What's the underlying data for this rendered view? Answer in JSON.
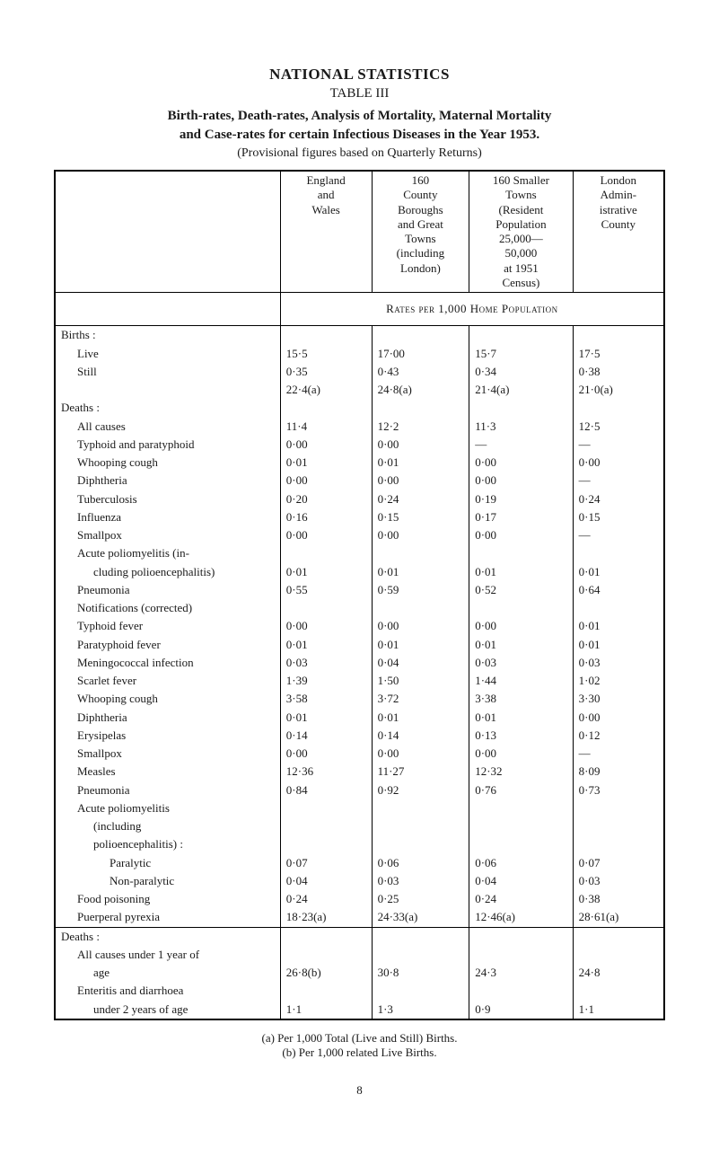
{
  "title": "NATIONAL STATISTICS",
  "table_no": "TABLE III",
  "heading_line1_prefix": "Birth-rates, Death-rates, Analysis of Mortality, Maternal Mortality",
  "heading_line2_prefix": "and Case-rates for certain Infectious Diseases in the Year 1953.",
  "paren": "(Provisional figures based on Quarterly Returns)",
  "columns": {
    "c1": "England\nand\nWales",
    "c2": "160\nCounty\nBoroughs\nand Great\nTowns\n(including\nLondon)",
    "c3": "160 Smaller\nTowns\n(Resident\nPopulation\n25,000—\n50,000\nat 1951\nCensus)",
    "c4": "London\nAdmin-\nistrative\nCounty"
  },
  "rates_label": "Rates per 1,000 Home Population",
  "section_births": "Births :",
  "section_deaths": "Deaths :",
  "section_notifs": "Notifications (corrected)",
  "section_acute_polio": "Acute poliomyelitis",
  "section_acute_polio_sub1": "(including",
  "section_acute_polio_sub2": "polioencephalitis) :",
  "section_deaths2": "Deaths :",
  "rows": {
    "live": {
      "label": "Live",
      "v": [
        "15·5",
        "17·00",
        "15·7",
        "17·5"
      ]
    },
    "still": {
      "label": "Still",
      "v": [
        "0·35",
        "0·43",
        "0·34",
        "0·38"
      ]
    },
    "still2": {
      "label": "",
      "v": [
        "22·4(a)",
        "24·8(a)",
        "21·4(a)",
        "21·0(a)"
      ]
    },
    "allcauses": {
      "label": "All causes",
      "v": [
        "11·4",
        "12·2",
        "11·3",
        "12·5"
      ]
    },
    "typhpara": {
      "label": "Typhoid and paratyphoid",
      "v": [
        "0·00",
        "0·00",
        "—",
        "—"
      ]
    },
    "whoop": {
      "label": "Whooping cough",
      "v": [
        "0·01",
        "0·01",
        "0·00",
        "0·00"
      ]
    },
    "diph": {
      "label": "Diphtheria",
      "v": [
        "0·00",
        "0·00",
        "0·00",
        "—"
      ]
    },
    "tb": {
      "label": "Tuberculosis",
      "v": [
        "0·20",
        "0·24",
        "0·19",
        "0·24"
      ]
    },
    "flu": {
      "label": "Influenza",
      "v": [
        "0·16",
        "0·15",
        "0·17",
        "0·15"
      ]
    },
    "smallpox": {
      "label": "Smallpox",
      "v": [
        "0·00",
        "0·00",
        "0·00",
        "—"
      ]
    },
    "acutepolio_d_lbl1": "Acute poliomyelitis (in-",
    "acutepolio_d_lbl2": "cluding polioencephalitis)",
    "acutepolio_d": {
      "v": [
        "0·01",
        "0·01",
        "0·01",
        "0·01"
      ]
    },
    "pneu_d": {
      "label": "Pneumonia",
      "v": [
        "0·55",
        "0·59",
        "0·52",
        "0·64"
      ]
    },
    "typhfever": {
      "label": "Typhoid fever",
      "v": [
        "0·00",
        "0·00",
        "0·00",
        "0·01"
      ]
    },
    "paraty": {
      "label": "Paratyphoid fever",
      "v": [
        "0·01",
        "0·01",
        "0·01",
        "0·01"
      ]
    },
    "mening": {
      "label": "Meningococcal infection",
      "v": [
        "0·03",
        "0·04",
        "0·03",
        "0·03"
      ]
    },
    "scarlet": {
      "label": "Scarlet fever",
      "v": [
        "1·39",
        "1·50",
        "1·44",
        "1·02"
      ]
    },
    "whoop_n": {
      "label": "Whooping cough",
      "v": [
        "3·58",
        "3·72",
        "3·38",
        "3·30"
      ]
    },
    "diph_n": {
      "label": "Diphtheria",
      "v": [
        "0·01",
        "0·01",
        "0·01",
        "0·00"
      ]
    },
    "erys": {
      "label": "Erysipelas",
      "v": [
        "0·14",
        "0·14",
        "0·13",
        "0·12"
      ]
    },
    "smallpox_n": {
      "label": "Smallpox",
      "v": [
        "0·00",
        "0·00",
        "0·00",
        "—"
      ]
    },
    "measles": {
      "label": "Measles",
      "v": [
        "12·36",
        "11·27",
        "12·32",
        "8·09"
      ]
    },
    "pneu_n": {
      "label": "Pneumonia",
      "v": [
        "0·84",
        "0·92",
        "0·76",
        "0·73"
      ]
    },
    "paralytic": {
      "label": "Paralytic",
      "v": [
        "0·07",
        "0·06",
        "0·06",
        "0·07"
      ]
    },
    "nonpara": {
      "label": "Non-paralytic",
      "v": [
        "0·04",
        "0·03",
        "0·04",
        "0·03"
      ]
    },
    "foodpois": {
      "label": "Food poisoning",
      "v": [
        "0·24",
        "0·25",
        "0·24",
        "0·38"
      ]
    },
    "puerp": {
      "label": "Puerperal pyrexia",
      "v": [
        "18·23(a)",
        "24·33(a)",
        "12·46(a)",
        "28·61(a)"
      ]
    },
    "allcauses1y_lbl1": "All causes under 1 year of",
    "allcauses1y_lbl2": "age",
    "allcauses1y": {
      "v": [
        "26·8(b)",
        "30·8",
        "24·3",
        "24·8"
      ]
    },
    "enteritis_lbl1": "Enteritis and diarrhoea",
    "enteritis_lbl2": "under 2 years of age",
    "enteritis": {
      "v": [
        "1·1",
        "1·3",
        "0·9",
        "1·1"
      ]
    }
  },
  "footnote_a": "(a) Per 1,000 Total (Live and Still) Births.",
  "footnote_b": "(b) Per 1,000 related Live Births.",
  "page_number": "8"
}
